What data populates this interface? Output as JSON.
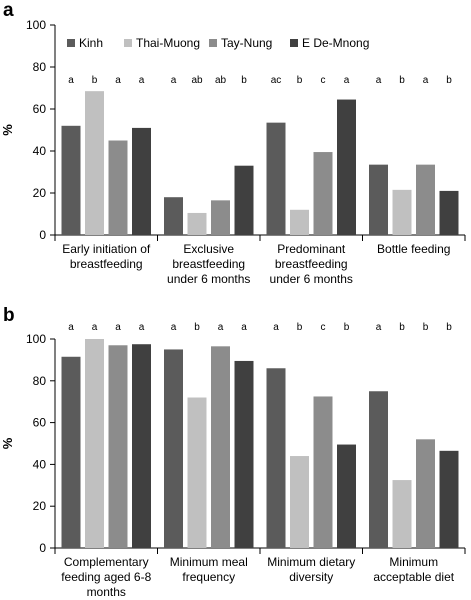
{
  "colors": {
    "Kinh": "#5b5b5b",
    "Thai-Muong": "#c0c0c0",
    "Tay-Nung": "#8c8c8c",
    "E De-Mnong": "#404040"
  },
  "chart_data": [
    {
      "type": "bar",
      "panel": "a",
      "ylabel": "%",
      "ylim": [
        0,
        100
      ],
      "yticks": [
        0,
        20,
        40,
        60,
        80,
        100
      ],
      "legend": [
        "Kinh",
        "Thai-Muong",
        "Tay-Nung",
        "E De-Mnong"
      ],
      "legend_position": "top-left",
      "categories": [
        [
          "Early initiation of",
          "breastfeeding"
        ],
        [
          "Exclusive",
          "breastfeeding",
          "under 6 months"
        ],
        [
          "Predominant",
          "breastfeeding",
          "under 6 months"
        ],
        [
          "Bottle feeding"
        ]
      ],
      "series": [
        {
          "name": "Kinh",
          "values": [
            52,
            18,
            53.5,
            33.5
          ]
        },
        {
          "name": "Thai-Muong",
          "values": [
            68.5,
            10.5,
            12,
            21.5
          ]
        },
        {
          "name": "Tay-Nung",
          "values": [
            45,
            16.5,
            39.5,
            33.5
          ]
        },
        {
          "name": "E De-Mnong",
          "values": [
            51,
            33,
            64.5,
            21
          ]
        }
      ],
      "significance": [
        [
          "a",
          "b",
          "a",
          "a"
        ],
        [
          "a",
          "ab",
          "ab",
          "b"
        ],
        [
          "ac",
          "b",
          "c",
          "a"
        ],
        [
          "a",
          "b",
          "a",
          "b"
        ]
      ]
    },
    {
      "type": "bar",
      "panel": "b",
      "ylabel": "%",
      "ylim": [
        0,
        100
      ],
      "yticks": [
        0,
        20,
        40,
        60,
        80,
        100
      ],
      "categories": [
        [
          "Complementary",
          "feeding aged 6-8",
          "months"
        ],
        [
          "Minimum meal",
          "frequency"
        ],
        [
          "Minimum dietary",
          "diversity"
        ],
        [
          "Minimum",
          "acceptable diet"
        ]
      ],
      "series": [
        {
          "name": "Kinh",
          "values": [
            91.5,
            95,
            86,
            75
          ]
        },
        {
          "name": "Thai-Muong",
          "values": [
            100,
            72,
            44,
            32.5
          ]
        },
        {
          "name": "Tay-Nung",
          "values": [
            97,
            96.5,
            72.5,
            52
          ]
        },
        {
          "name": "E De-Mnong",
          "values": [
            97.5,
            89.5,
            49.5,
            46.5
          ]
        }
      ],
      "significance": [
        [
          "a",
          "a",
          "a",
          "a"
        ],
        [
          "a",
          "b",
          "a",
          "a"
        ],
        [
          "a",
          "b",
          "c",
          "b"
        ],
        [
          "a",
          "b",
          "b",
          "b"
        ]
      ]
    }
  ]
}
